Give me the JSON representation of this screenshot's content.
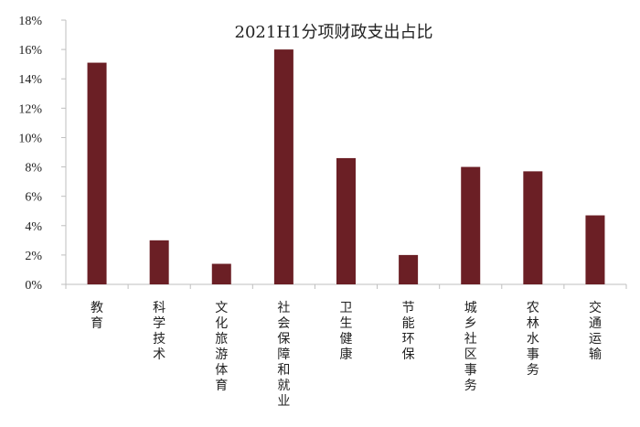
{
  "chart_data": {
    "type": "bar",
    "title": "2021H1分项财政支出占比",
    "categories": [
      "教育",
      "科学技术",
      "文化旅游体育",
      "社会保障和就业",
      "卫生健康",
      "节能环保",
      "城乡社区事务",
      "农林水事务",
      "交通运输"
    ],
    "values": [
      15.1,
      3.0,
      1.4,
      16.0,
      8.6,
      2.0,
      8.0,
      7.7,
      4.7
    ],
    "unit": "%",
    "ylim": [
      0,
      18
    ],
    "yticks": [
      0,
      2,
      4,
      6,
      8,
      10,
      12,
      14,
      16,
      18
    ],
    "ytick_labels": [
      "0%",
      "2%",
      "4%",
      "6%",
      "8%",
      "10%",
      "12%",
      "14%",
      "16%",
      "18%"
    ],
    "xlabel": "",
    "ylabel": "",
    "grid": false,
    "legend": "none",
    "bar_color": "#6b1f25",
    "axis_color": "#bfbfbf"
  }
}
